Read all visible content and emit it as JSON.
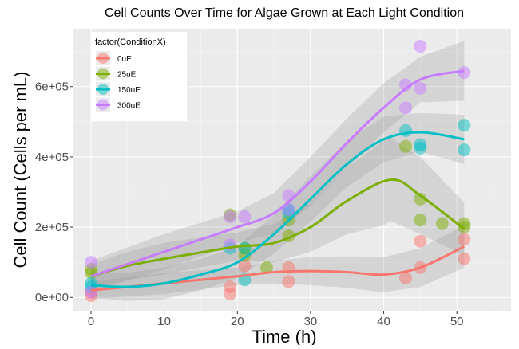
{
  "chart_data": {
    "type": "scatter",
    "title": "Cell Counts Over Time for Algae Grown at Each Light Condition",
    "xlabel": "Time (h)",
    "ylabel": "Cell Count (Cells per mL)",
    "xlim": [
      -2.4,
      57.4
    ],
    "ylim": [
      -38000,
      765000
    ],
    "x_ticks": [
      0,
      10,
      20,
      30,
      40,
      50
    ],
    "x_tick_labels": [
      "0",
      "10",
      "20",
      "30",
      "40",
      "50"
    ],
    "y_ticks": [
      0,
      200000,
      400000,
      600000
    ],
    "y_tick_labels": [
      "0e+00",
      "2e+05",
      "4e+05",
      "6e+05"
    ],
    "grid": true,
    "legend": {
      "title": "factor(ConditionX)",
      "placement": "top-left"
    },
    "series": [
      {
        "name": "0uE",
        "color": "#F8766D",
        "points": [
          [
            0,
            5000
          ],
          [
            0,
            15000
          ],
          [
            19,
            10000
          ],
          [
            19,
            30000
          ],
          [
            21,
            90000
          ],
          [
            27,
            45000
          ],
          [
            27,
            85000
          ],
          [
            43,
            55000
          ],
          [
            45,
            85000
          ],
          [
            45,
            160000
          ],
          [
            51,
            110000
          ],
          [
            51,
            165000
          ]
        ],
        "smooth": [
          [
            0,
            20000
          ],
          [
            5,
            30000
          ],
          [
            10,
            40000
          ],
          [
            15,
            50000
          ],
          [
            20,
            60000
          ],
          [
            25,
            72000
          ],
          [
            30,
            75000
          ],
          [
            35,
            72000
          ],
          [
            40,
            65000
          ],
          [
            45,
            85000
          ],
          [
            51,
            145000
          ]
        ],
        "se": [
          [
            0,
            25000
          ],
          [
            10,
            30000
          ],
          [
            20,
            25000
          ],
          [
            30,
            40000
          ],
          [
            40,
            50000
          ],
          [
            45,
            55000
          ],
          [
            51,
            60000
          ]
        ]
      },
      {
        "name": "25uE",
        "color": "#7CAE00",
        "points": [
          [
            0,
            70000
          ],
          [
            0,
            80000
          ],
          [
            19,
            235000
          ],
          [
            21,
            120000
          ],
          [
            21,
            140000
          ],
          [
            24,
            85000
          ],
          [
            27,
            175000
          ],
          [
            27,
            220000
          ],
          [
            43,
            430000
          ],
          [
            45,
            280000
          ],
          [
            45,
            220000
          ],
          [
            48,
            210000
          ],
          [
            51,
            210000
          ],
          [
            51,
            200000
          ]
        ],
        "smooth": [
          [
            0,
            60000
          ],
          [
            5,
            90000
          ],
          [
            10,
            110000
          ],
          [
            15,
            128000
          ],
          [
            20,
            145000
          ],
          [
            25,
            155000
          ],
          [
            30,
            200000
          ],
          [
            35,
            275000
          ],
          [
            41,
            335000
          ],
          [
            45,
            290000
          ],
          [
            51,
            195000
          ]
        ],
        "se": [
          [
            0,
            35000
          ],
          [
            10,
            45000
          ],
          [
            20,
            40000
          ],
          [
            30,
            70000
          ],
          [
            40,
            120000
          ],
          [
            45,
            110000
          ],
          [
            51,
            75000
          ]
        ]
      },
      {
        "name": "150uE",
        "color": "#00BFC4",
        "points": [
          [
            0,
            30000
          ],
          [
            0,
            40000
          ],
          [
            19,
            140000
          ],
          [
            21,
            50000
          ],
          [
            21,
            140000
          ],
          [
            27,
            240000
          ],
          [
            27,
            250000
          ],
          [
            43,
            475000
          ],
          [
            45,
            425000
          ],
          [
            45,
            435000
          ],
          [
            51,
            490000
          ],
          [
            51,
            420000
          ]
        ],
        "smooth": [
          [
            0,
            35000
          ],
          [
            5,
            30000
          ],
          [
            10,
            40000
          ],
          [
            15,
            65000
          ],
          [
            20,
            100000
          ],
          [
            25,
            180000
          ],
          [
            30,
            280000
          ],
          [
            35,
            380000
          ],
          [
            40,
            450000
          ],
          [
            45,
            470000
          ],
          [
            51,
            450000
          ]
        ],
        "se": [
          [
            0,
            35000
          ],
          [
            10,
            45000
          ],
          [
            20,
            45000
          ],
          [
            30,
            65000
          ],
          [
            40,
            65000
          ],
          [
            45,
            55000
          ],
          [
            51,
            70000
          ]
        ]
      },
      {
        "name": "300uE",
        "color": "#C77CFF",
        "points": [
          [
            0,
            100000
          ],
          [
            0,
            15000
          ],
          [
            19,
            150000
          ],
          [
            19,
            230000
          ],
          [
            21,
            230000
          ],
          [
            27,
            290000
          ],
          [
            27,
            250000
          ],
          [
            43,
            605000
          ],
          [
            43,
            540000
          ],
          [
            45,
            715000
          ],
          [
            45,
            595000
          ],
          [
            51,
            640000
          ]
        ],
        "smooth": [
          [
            0,
            60000
          ],
          [
            5,
            95000
          ],
          [
            10,
            130000
          ],
          [
            15,
            165000
          ],
          [
            20,
            200000
          ],
          [
            25,
            240000
          ],
          [
            30,
            330000
          ],
          [
            35,
            440000
          ],
          [
            40,
            540000
          ],
          [
            45,
            620000
          ],
          [
            51,
            645000
          ]
        ],
        "se": [
          [
            0,
            45000
          ],
          [
            10,
            50000
          ],
          [
            20,
            45000
          ],
          [
            30,
            70000
          ],
          [
            40,
            70000
          ],
          [
            45,
            65000
          ],
          [
            51,
            85000
          ]
        ]
      }
    ]
  }
}
